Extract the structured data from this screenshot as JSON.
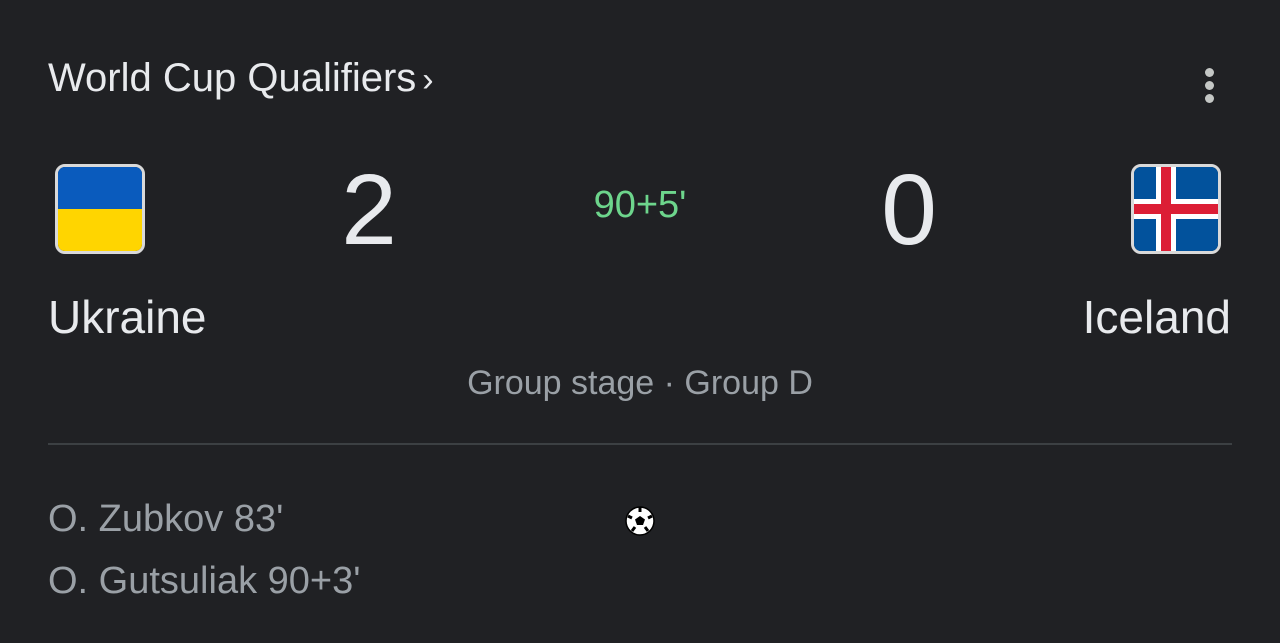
{
  "header": {
    "title": "World Cup Qualifiers",
    "chevron": "›",
    "menu_icon": "more-vert-icon"
  },
  "match": {
    "home": {
      "name": "Ukraine",
      "score": "2",
      "flag_colors": [
        "#0a5bbd",
        "#ffd500"
      ]
    },
    "away": {
      "name": "Iceland",
      "score": "0",
      "flag_colors": [
        "#02529c",
        "#ffffff",
        "#dc1e35"
      ]
    },
    "clock": "90+5'",
    "clock_color": "#6dd58c",
    "stage": "Group stage · Group D"
  },
  "goals": {
    "icon": "soccer-ball-icon",
    "home_scorers": [
      "O. Zubkov 83'",
      "O. Gutsuliak 90+3'"
    ]
  }
}
